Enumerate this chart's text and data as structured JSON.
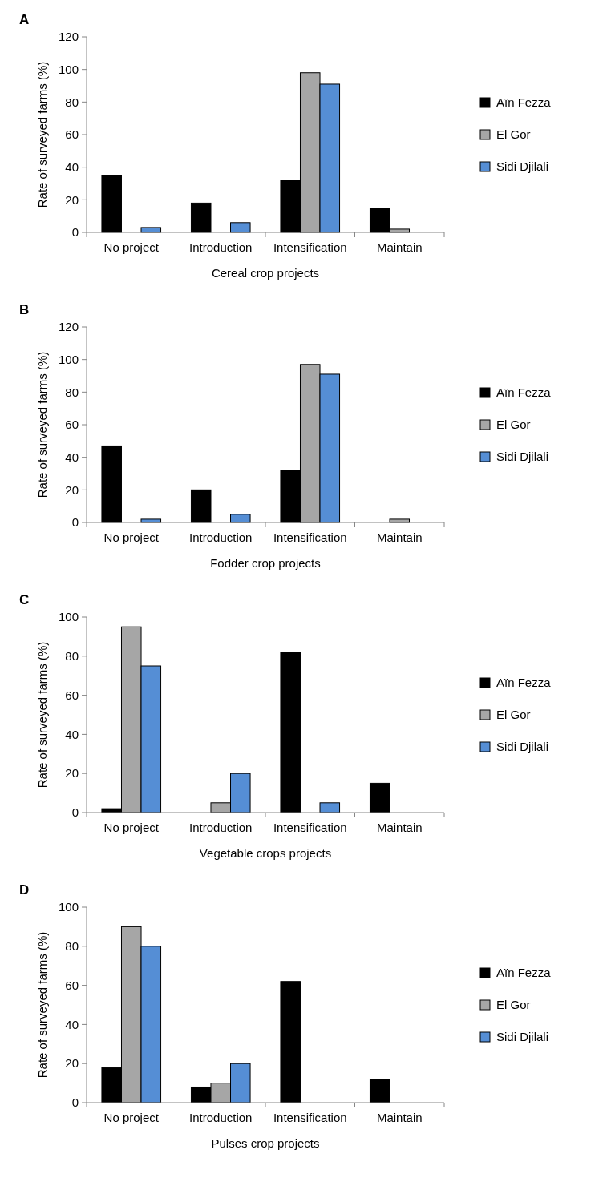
{
  "chart_data": [
    {
      "type": "bar",
      "title": "A",
      "xlabel": "Cereal crop projects",
      "ylabel": "Rate of surveyed farms (%)",
      "categories": [
        "No project",
        "Introduction",
        "Intensification",
        "Maintain"
      ],
      "ylim": [
        0,
        120
      ],
      "yticks": [
        0,
        20,
        40,
        60,
        80,
        100,
        120
      ],
      "legend": "right",
      "grid": false,
      "series": [
        {
          "name": "Aïn Fezza",
          "color": "#000000",
          "values": [
            35,
            18,
            32,
            15
          ]
        },
        {
          "name": "El Gor",
          "color": "#a6a6a6",
          "values": [
            0,
            0,
            98,
            2
          ]
        },
        {
          "name": "Sidi Djilali",
          "color": "#558ed5",
          "values": [
            3,
            6,
            91,
            0
          ]
        }
      ]
    },
    {
      "type": "bar",
      "title": "B",
      "xlabel": "Fodder crop projects",
      "ylabel": "Rate of surveyed farms (%)",
      "categories": [
        "No project",
        "Introduction",
        "Intensification",
        "Maintain"
      ],
      "ylim": [
        0,
        120
      ],
      "yticks": [
        0,
        20,
        40,
        60,
        80,
        100,
        120
      ],
      "legend": "right",
      "grid": false,
      "series": [
        {
          "name": "Aïn Fezza",
          "color": "#000000",
          "values": [
            47,
            20,
            32,
            0
          ]
        },
        {
          "name": "El Gor",
          "color": "#a6a6a6",
          "values": [
            0,
            0,
            97,
            2
          ]
        },
        {
          "name": "Sidi Djilali",
          "color": "#558ed5",
          "values": [
            2,
            5,
            91,
            0
          ]
        }
      ]
    },
    {
      "type": "bar",
      "title": "C",
      "xlabel": "Vegetable crops projects",
      "ylabel": "Rate of surveyed farms (%)",
      "categories": [
        "No project",
        "Introduction",
        "Intensification",
        "Maintain"
      ],
      "ylim": [
        0,
        100
      ],
      "yticks": [
        0,
        20,
        40,
        60,
        80,
        100
      ],
      "legend": "right",
      "grid": false,
      "series": [
        {
          "name": "Aïn Fezza",
          "color": "#000000",
          "values": [
            2,
            0,
            82,
            15
          ]
        },
        {
          "name": "El Gor",
          "color": "#a6a6a6",
          "values": [
            95,
            5,
            0,
            0
          ]
        },
        {
          "name": "Sidi Djilali",
          "color": "#558ed5",
          "values": [
            75,
            20,
            5,
            0
          ]
        }
      ]
    },
    {
      "type": "bar",
      "title": "D",
      "xlabel": "Pulses crop projects",
      "ylabel": "Rate of surveyed farms (%)",
      "categories": [
        "No project",
        "Introduction",
        "Intensification",
        "Maintain"
      ],
      "ylim": [
        0,
        100
      ],
      "yticks": [
        0,
        20,
        40,
        60,
        80,
        100
      ],
      "legend": "right",
      "grid": false,
      "series": [
        {
          "name": "Aïn Fezza",
          "color": "#000000",
          "values": [
            18,
            8,
            62,
            12
          ]
        },
        {
          "name": "El Gor",
          "color": "#a6a6a6",
          "values": [
            90,
            10,
            0,
            0
          ]
        },
        {
          "name": "Sidi Djilali",
          "color": "#558ed5",
          "values": [
            80,
            20,
            0,
            0
          ]
        }
      ]
    }
  ]
}
